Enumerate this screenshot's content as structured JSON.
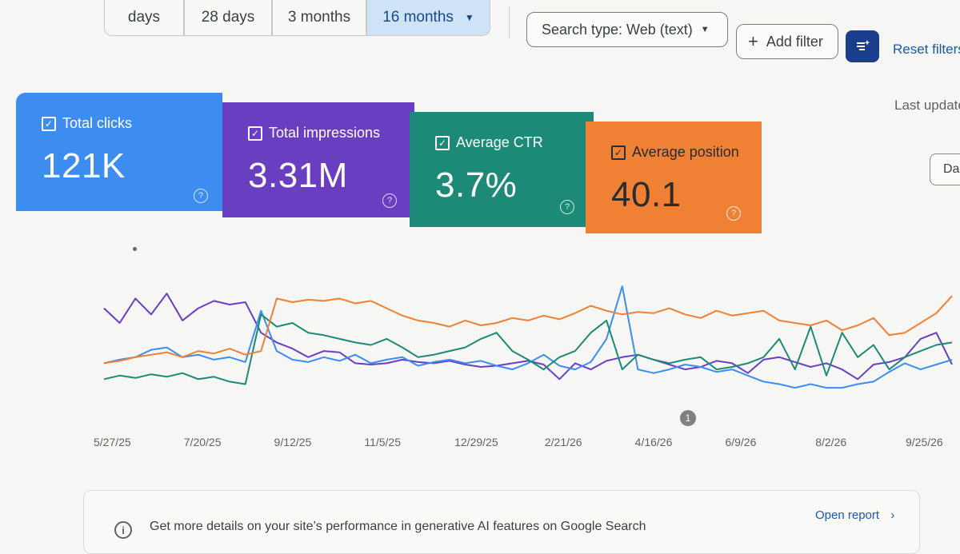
{
  "date_tabs": [
    {
      "label": "days"
    },
    {
      "label": "28 days"
    },
    {
      "label": "3 months"
    },
    {
      "label": "16 months",
      "selected": true
    }
  ],
  "filters": {
    "search_type": "Search type: Web (text)",
    "add_filter": "Add filter",
    "reset": "Reset filters"
  },
  "status": {
    "last_updated": "Last update",
    "side_button": "Da"
  },
  "metrics": [
    {
      "label": "Total clicks",
      "value": "121K",
      "color": "#3d8df0",
      "checked": true
    },
    {
      "label": "Total impressions",
      "value": "3.31M",
      "color": "#6a3ec1",
      "checked": true
    },
    {
      "label": "Average CTR",
      "value": "3.7%",
      "color": "#1c8a77",
      "checked": true
    },
    {
      "label": "Average position",
      "value": "40.1",
      "color": "#ef8034",
      "checked": true
    }
  ],
  "annotation_marker": "1",
  "chart_data": {
    "type": "line",
    "x_ticks": [
      "5/27/25",
      "7/20/25",
      "9/12/25",
      "11/5/25",
      "12/29/25",
      "2/21/26",
      "4/16/26",
      "6/9/26",
      "8/2/26",
      "9/25/26"
    ],
    "y_axes": "independent per metric (no axis labels shown)",
    "grid": false,
    "series": [
      {
        "name": "Total impressions",
        "color": "#6a3ec1",
        "values": [
          0.8,
          0.68,
          0.88,
          0.75,
          0.92,
          0.7,
          0.8,
          0.86,
          0.83,
          0.85,
          0.6,
          0.52,
          0.47,
          0.4,
          0.45,
          0.44,
          0.35,
          0.34,
          0.35,
          0.38,
          0.36,
          0.35,
          0.37,
          0.34,
          0.32,
          0.33,
          0.35,
          0.37,
          0.34,
          0.22,
          0.35,
          0.3,
          0.37,
          0.4,
          0.42,
          0.38,
          0.34,
          0.3,
          0.32,
          0.37,
          0.35,
          0.27,
          0.38,
          0.4,
          0.36,
          0.32,
          0.35,
          0.3,
          0.22,
          0.34,
          0.36,
          0.4,
          0.55,
          0.6,
          0.34
        ]
      },
      {
        "name": "Total clicks",
        "color": "#3d8df0",
        "values": [
          0.35,
          0.38,
          0.4,
          0.46,
          0.48,
          0.4,
          0.42,
          0.38,
          0.4,
          0.36,
          0.78,
          0.45,
          0.38,
          0.36,
          0.4,
          0.37,
          0.42,
          0.35,
          0.38,
          0.4,
          0.33,
          0.36,
          0.38,
          0.35,
          0.37,
          0.33,
          0.3,
          0.35,
          0.42,
          0.33,
          0.3,
          0.36,
          0.55,
          0.98,
          0.3,
          0.27,
          0.3,
          0.34,
          0.32,
          0.28,
          0.3,
          0.25,
          0.2,
          0.18,
          0.15,
          0.18,
          0.15,
          0.15,
          0.18,
          0.2,
          0.28,
          0.35,
          0.3,
          0.34,
          0.38
        ]
      },
      {
        "name": "Average CTR",
        "color": "#1c8a77",
        "values": [
          0.22,
          0.25,
          0.23,
          0.26,
          0.24,
          0.27,
          0.22,
          0.24,
          0.2,
          0.18,
          0.75,
          0.65,
          0.68,
          0.6,
          0.58,
          0.55,
          0.52,
          0.5,
          0.55,
          0.48,
          0.4,
          0.42,
          0.45,
          0.48,
          0.55,
          0.6,
          0.45,
          0.38,
          0.3,
          0.4,
          0.45,
          0.6,
          0.7,
          0.3,
          0.42,
          0.38,
          0.35,
          0.38,
          0.4,
          0.3,
          0.32,
          0.35,
          0.4,
          0.55,
          0.3,
          0.65,
          0.25,
          0.6,
          0.4,
          0.5,
          0.3,
          0.4,
          0.45,
          0.5,
          0.52
        ]
      },
      {
        "name": "Average position",
        "color": "#ef8034",
        "values": [
          0.35,
          0.37,
          0.4,
          0.42,
          0.44,
          0.4,
          0.45,
          0.43,
          0.47,
          0.42,
          0.45,
          0.88,
          0.85,
          0.87,
          0.86,
          0.88,
          0.84,
          0.86,
          0.8,
          0.74,
          0.7,
          0.68,
          0.65,
          0.7,
          0.66,
          0.68,
          0.72,
          0.7,
          0.74,
          0.71,
          0.76,
          0.82,
          0.78,
          0.75,
          0.77,
          0.76,
          0.8,
          0.75,
          0.72,
          0.78,
          0.74,
          0.76,
          0.78,
          0.7,
          0.68,
          0.66,
          0.7,
          0.62,
          0.66,
          0.72,
          0.58,
          0.6,
          0.68,
          0.76,
          0.9
        ]
      }
    ]
  },
  "banner": {
    "text": "Get more details on your site’s performance in generative AI features on Google Search",
    "link": "Open report"
  }
}
